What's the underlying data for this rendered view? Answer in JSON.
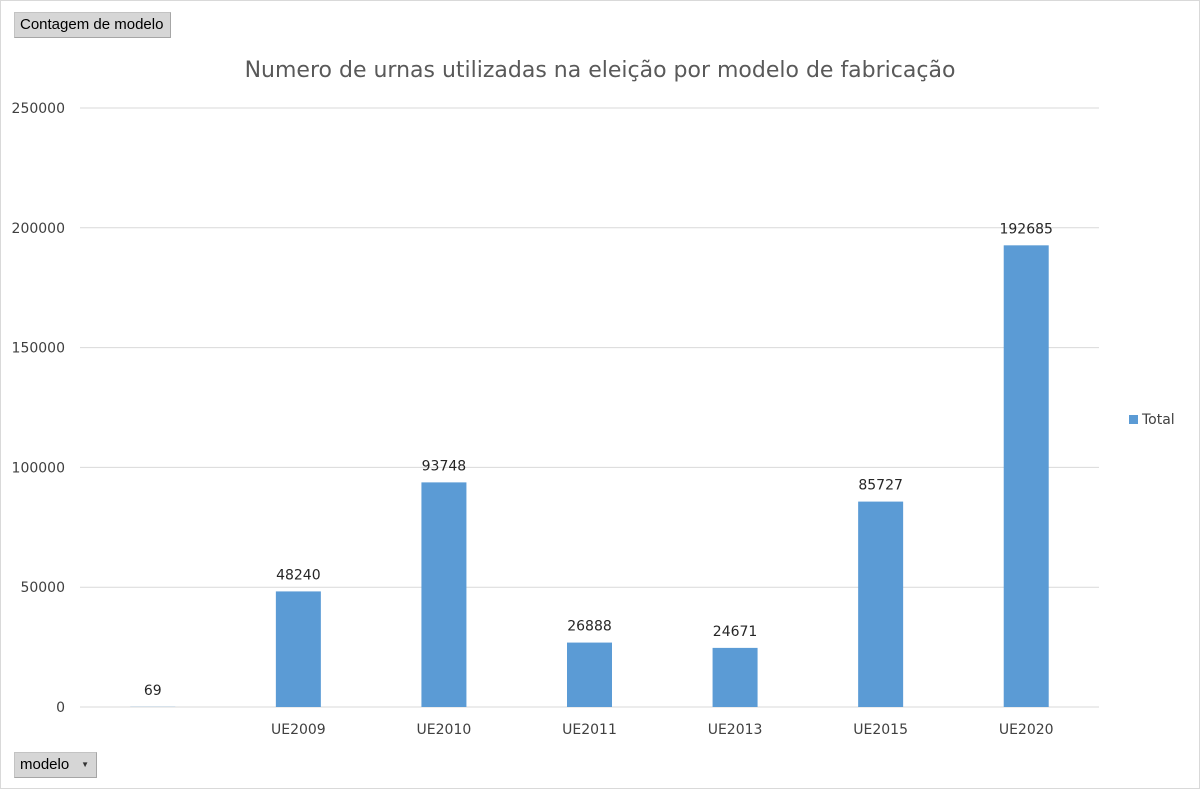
{
  "pivot": {
    "value_field": "Contagem de modelo",
    "axis_field": "modelo",
    "axis_dropdown_icon": "chevron-down-icon"
  },
  "colors": {
    "bar": "#5b9bd5",
    "grid": "#d9d9d9",
    "text": "#404040",
    "title": "#595959"
  },
  "chart_data": {
    "type": "bar",
    "title": "Numero de urnas utilizadas na eleição por modelo de fabricação",
    "xlabel": "",
    "ylabel": "",
    "categories": [
      "",
      "UE2009",
      "UE2010",
      "UE2011",
      "UE2013",
      "UE2015",
      "UE2020"
    ],
    "series": [
      {
        "name": "Total",
        "values": [
          69,
          48240,
          93748,
          26888,
          24671,
          85727,
          192685
        ],
        "data_labels": [
          "69",
          "48240",
          "93748",
          "26888",
          "24671",
          "85727",
          "192685"
        ]
      }
    ],
    "ylim": [
      0,
      250000
    ],
    "yticks": [
      0,
      50000,
      100000,
      150000,
      200000,
      250000
    ],
    "ytick_labels": [
      "0",
      "50000",
      "100000",
      "150000",
      "200000",
      "250000"
    ],
    "grid": true,
    "legend": {
      "position": "right",
      "entries": [
        "Total"
      ]
    }
  }
}
